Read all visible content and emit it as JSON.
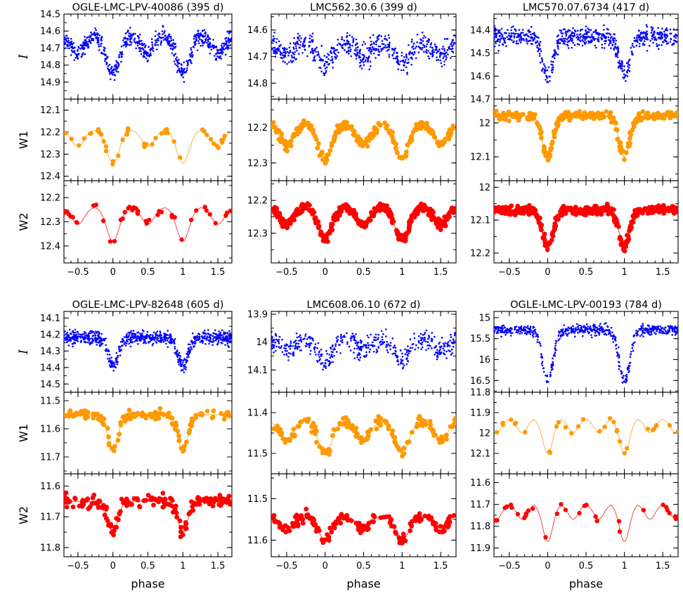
{
  "chart_data": {
    "type": "scatter",
    "xlabel": "phase",
    "xlim": [
      -0.7,
      1.7
    ],
    "xticks": [
      -0.5,
      0,
      0.5,
      1,
      1.5
    ],
    "xtick_labels": [
      "−0.5",
      "0",
      "0.5",
      "1",
      "1.5"
    ],
    "row_labels": [
      "I",
      "W1",
      "W2"
    ],
    "band_colors": {
      "I": "#0000ff",
      "W1": "#ff9900",
      "W2": "#ff0000"
    },
    "panels": [
      {
        "title": "OGLE-LMC-LPV-40086 (395 d)",
        "I": {
          "ylim": [
            14.5,
            15.0
          ],
          "ticks": [
            14.5,
            14.6,
            14.7,
            14.8,
            14.9
          ],
          "labels": [
            "14.5",
            "14.6",
            "14.7",
            "14.8",
            "14.9"
          ],
          "mean": 14.63,
          "amp": 0.22,
          "period_ratio": 2,
          "secondary": 0.45,
          "scatter": 0.05,
          "points": 700,
          "points_per_cycle": 1
        },
        "W1": {
          "ylim": [
            12.05,
            12.42
          ],
          "ticks": [
            12.1,
            12.2,
            12.3,
            12.4
          ],
          "labels": [
            "12.1",
            "12.2",
            "12.3",
            "12.4"
          ],
          "mean": 12.19,
          "amp": 0.15,
          "period_ratio": 2,
          "secondary": 0.5,
          "scatter": 0.012,
          "points": 45,
          "has_fit": true
        },
        "W2": {
          "ylim": [
            12.13,
            12.47
          ],
          "ticks": [
            12.2,
            12.3,
            12.4
          ],
          "labels": [
            "12.2",
            "12.3",
            "12.4"
          ],
          "mean": 12.24,
          "amp": 0.14,
          "period_ratio": 2,
          "secondary": 0.5,
          "scatter": 0.015,
          "points": 45,
          "has_fit": true
        }
      },
      {
        "title": "LMC562.30.6 (399 d)",
        "I": {
          "ylim": [
            14.54,
            14.86
          ],
          "ticks": [
            14.6,
            14.7,
            14.8
          ],
          "labels": [
            "14.6",
            "14.7",
            "14.8"
          ],
          "mean": 14.65,
          "amp": 0.08,
          "period_ratio": 2,
          "secondary": 0.6,
          "scatter": 0.045,
          "points": 600
        },
        "W1": {
          "ylim": [
            12.12,
            12.35
          ],
          "ticks": [
            12.2,
            12.3
          ],
          "labels": [
            "12.2",
            "12.3"
          ],
          "mean": 12.19,
          "amp": 0.1,
          "period_ratio": 2,
          "secondary": 0.6,
          "scatter": 0.012,
          "points": 260,
          "has_fit": true
        },
        "W2": {
          "ylim": [
            12.14,
            12.39
          ],
          "ticks": [
            12.2,
            12.3
          ],
          "labels": [
            "12.2",
            "12.3"
          ],
          "mean": 12.22,
          "amp": 0.1,
          "period_ratio": 2,
          "secondary": 0.55,
          "scatter": 0.012,
          "points": 400,
          "has_fit": true
        }
      },
      {
        "title": "LMC570.07.6734 (417 d)",
        "I": {
          "ylim": [
            14.33,
            14.7
          ],
          "ticks": [
            14.4,
            14.5,
            14.6,
            14.7
          ],
          "labels": [
            "14.4",
            "14.5",
            "14.6",
            "14.7"
          ],
          "mean": 14.43,
          "amp": 0.17,
          "period_ratio": 1,
          "secondary": 0,
          "scatter": 0.04,
          "points": 700
        },
        "W1": {
          "ylim": [
            11.93,
            12.17
          ],
          "ticks": [
            12.0,
            12.1
          ],
          "labels": [
            "12",
            "12.1"
          ],
          "mean": 11.98,
          "amp": 0.12,
          "period_ratio": 1,
          "secondary": 0,
          "scatter": 0.012,
          "points": 250,
          "has_fit": true
        },
        "W2": {
          "ylim": [
            11.98,
            12.23
          ],
          "ticks": [
            12.0,
            12.1,
            12.2
          ],
          "labels": [
            "12",
            "12.1",
            "12.2"
          ],
          "mean": 12.07,
          "amp": 0.11,
          "period_ratio": 1,
          "secondary": 0,
          "scatter": 0.012,
          "points": 400,
          "has_fit": true
        }
      },
      {
        "title": "OGLE-LMC-LPV-82648 (605 d)",
        "I": {
          "ylim": [
            14.06,
            14.55
          ],
          "ticks": [
            14.1,
            14.2,
            14.3,
            14.4,
            14.5
          ],
          "labels": [
            "14.1",
            "14.2",
            "14.3",
            "14.4",
            "14.5"
          ],
          "mean": 14.22,
          "amp": 0.17,
          "period_ratio": 1,
          "secondary": 0,
          "scatter": 0.04,
          "points": 800
        },
        "W1": {
          "ylim": [
            11.47,
            11.76
          ],
          "ticks": [
            11.5,
            11.6,
            11.7
          ],
          "labels": [
            "11.5",
            "11.6",
            "11.7"
          ],
          "mean": 11.55,
          "amp": 0.13,
          "period_ratio": 1,
          "secondary": 0,
          "scatter": 0.015,
          "points": 140,
          "has_fit": true
        },
        "W2": {
          "ylim": [
            11.56,
            11.83
          ],
          "ticks": [
            11.6,
            11.7,
            11.8
          ],
          "labels": [
            "11.6",
            "11.7",
            "11.8"
          ],
          "mean": 11.65,
          "amp": 0.1,
          "period_ratio": 1,
          "secondary": 0,
          "scatter": 0.02,
          "points": 170,
          "has_fit": true
        }
      },
      {
        "title": "LMC608.06.10 (672 d)",
        "I": {
          "ylim": [
            13.89,
            14.18
          ],
          "ticks": [
            13.9,
            14.0,
            14.1
          ],
          "labels": [
            "13.9",
            "14",
            "14.1"
          ],
          "mean": 13.99,
          "amp": 0.08,
          "period_ratio": 2,
          "secondary": 0.5,
          "scatter": 0.035,
          "points": 500
        },
        "W1": {
          "ylim": [
            11.35,
            11.55
          ],
          "ticks": [
            11.4,
            11.5
          ],
          "labels": [
            "11.4",
            "11.5"
          ],
          "mean": 11.42,
          "amp": 0.08,
          "period_ratio": 2,
          "secondary": 0.6,
          "scatter": 0.012,
          "points": 160,
          "has_fit": true
        },
        "W2": {
          "ylim": [
            11.44,
            11.64
          ],
          "ticks": [
            11.5,
            11.6
          ],
          "labels": [
            "11.5",
            "11.6"
          ],
          "mean": 11.54,
          "amp": 0.06,
          "period_ratio": 2,
          "secondary": 0.6,
          "scatter": 0.012,
          "points": 180,
          "has_fit": true
        }
      },
      {
        "title": "OGLE-LMC-LPV-00193 (784 d)",
        "I": {
          "ylim": [
            14.85,
            16.78
          ],
          "ticks": [
            15.0,
            15.5,
            16.0,
            16.5
          ],
          "labels": [
            "15",
            "15.5",
            "16",
            "16.5"
          ],
          "mean": 15.3,
          "amp": 1.2,
          "period_ratio": 1,
          "secondary": 0,
          "scatter": 0.12,
          "points": 600
        },
        "W1": {
          "ylim": [
            11.8,
            12.2
          ],
          "ticks": [
            11.8,
            11.9,
            12.0,
            12.1
          ],
          "labels": [
            "11.8",
            "11.9",
            "12",
            "12.1"
          ],
          "mean": 11.93,
          "amp": 0.17,
          "period_ratio": 3,
          "secondary": 0.4,
          "scatter": 0.01,
          "points": 30,
          "has_fit": true
        },
        "W2": {
          "ylim": [
            11.56,
            11.94
          ],
          "ticks": [
            11.6,
            11.7,
            11.8,
            11.9
          ],
          "labels": [
            "11.6",
            "11.7",
            "11.8",
            "11.9"
          ],
          "mean": 11.7,
          "amp": 0.17,
          "period_ratio": 3,
          "secondary": 0.4,
          "scatter": 0.01,
          "points": 30,
          "has_fit": true
        }
      }
    ]
  }
}
